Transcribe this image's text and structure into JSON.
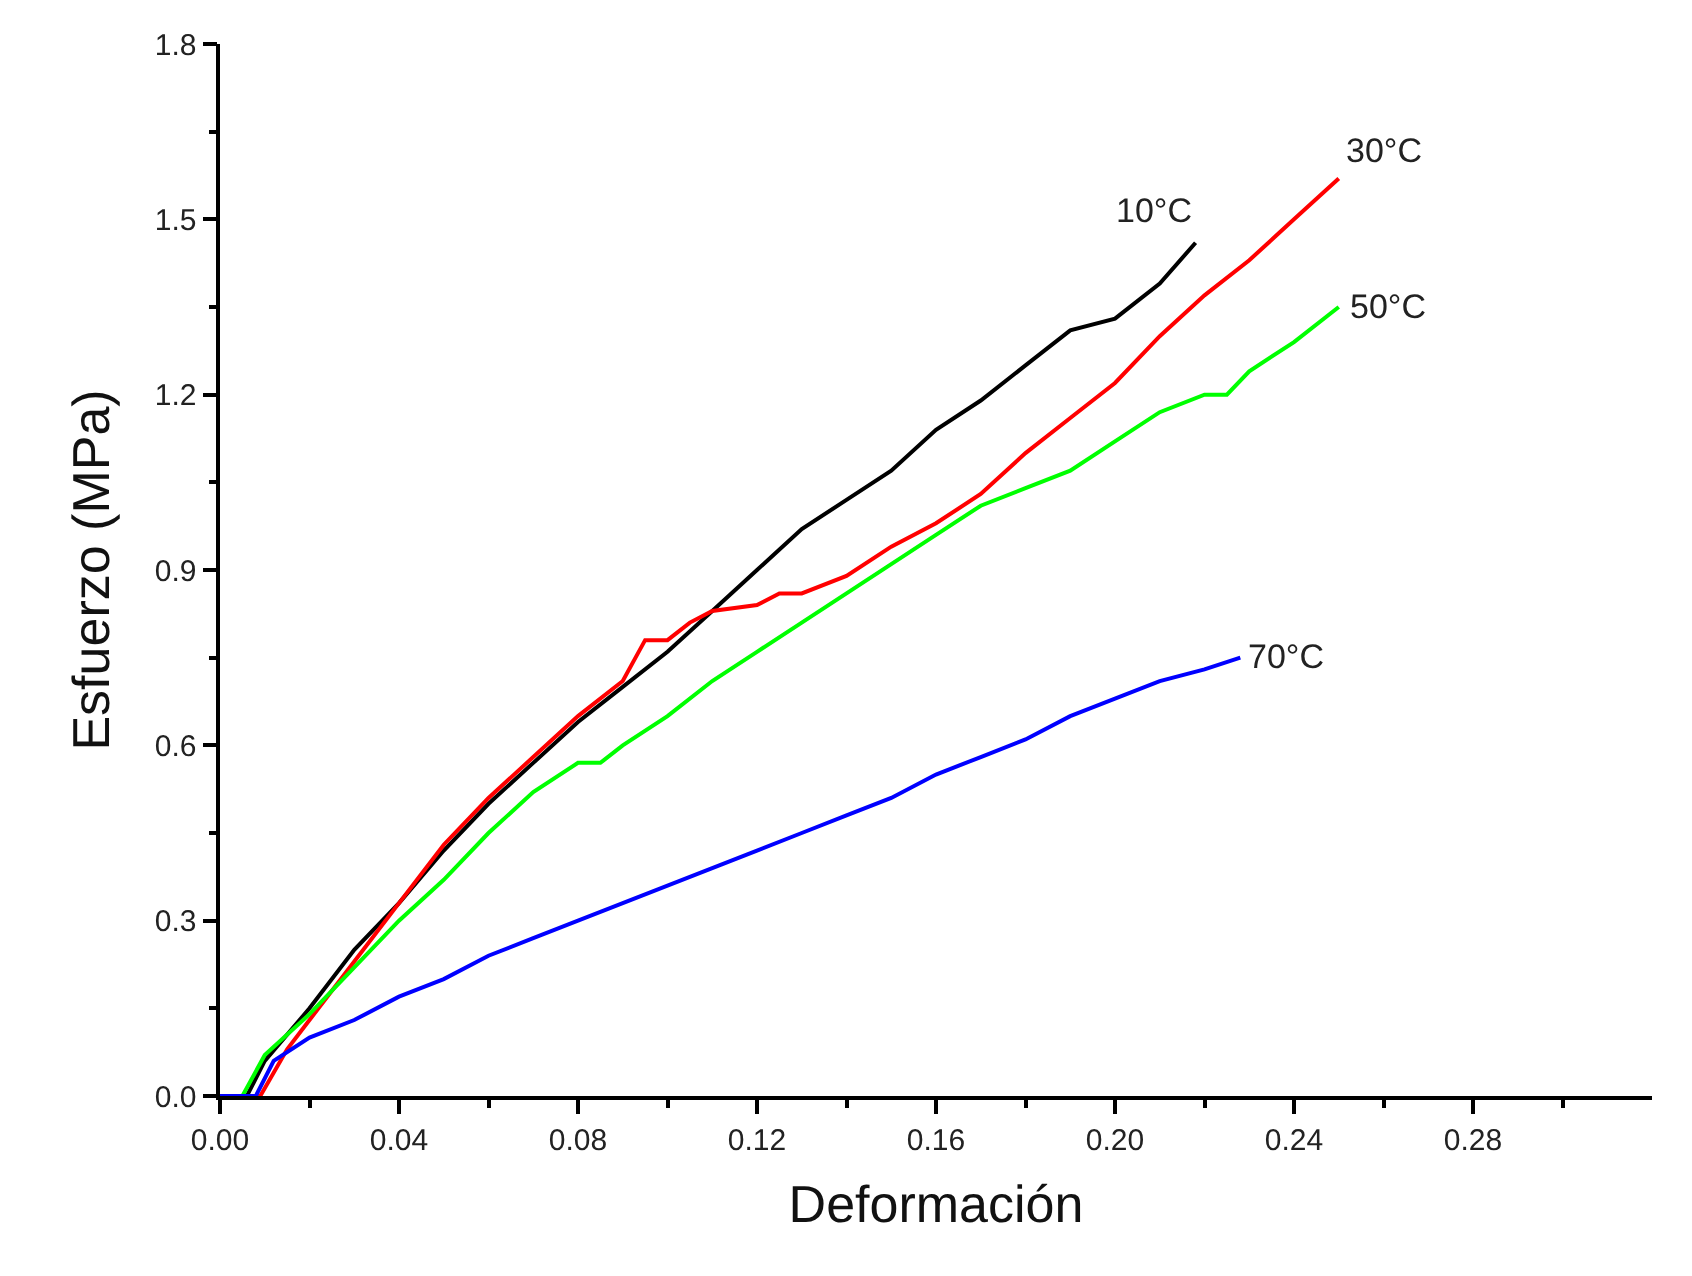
{
  "chart_data": {
    "type": "line",
    "xlabel": "Deformación",
    "ylabel": "Esfuerzo (MPa)",
    "xlim": [
      0,
      0.32
    ],
    "ylim": [
      0,
      1.8
    ],
    "xticks": [
      {
        "value": 0,
        "label": "0.00"
      },
      {
        "value": 0.02,
        "label": null
      },
      {
        "value": 0.04,
        "label": "0.04"
      },
      {
        "value": 0.06,
        "label": null
      },
      {
        "value": 0.08,
        "label": "0.08"
      },
      {
        "value": 0.1,
        "label": null
      },
      {
        "value": 0.12,
        "label": "0.12"
      },
      {
        "value": 0.14,
        "label": null
      },
      {
        "value": 0.16,
        "label": "0.16"
      },
      {
        "value": 0.18,
        "label": null
      },
      {
        "value": 0.2,
        "label": "0.20"
      },
      {
        "value": 0.22,
        "label": null
      },
      {
        "value": 0.24,
        "label": "0.24"
      },
      {
        "value": 0.26,
        "label": null
      },
      {
        "value": 0.28,
        "label": "0.28"
      },
      {
        "value": 0.3,
        "label": null
      }
    ],
    "yticks": [
      {
        "value": 0,
        "label": "0.0"
      },
      {
        "value": 0.15,
        "label": null
      },
      0.3,
      {
        "value": 0.45,
        "label": null
      },
      0.6,
      {
        "value": 0.75,
        "label": null
      },
      0.9,
      {
        "value": 1.05,
        "label": null
      },
      1.2,
      {
        "value": 1.35,
        "label": null
      },
      1.5,
      {
        "value": 1.65,
        "label": null
      },
      1.8
    ],
    "legend": false,
    "marker": "none",
    "line_style": "solid",
    "series": [
      {
        "name": "10°C",
        "color": "#000000",
        "x": [
          0,
          0.006,
          0.01,
          0.02,
          0.03,
          0.04,
          0.05,
          0.06,
          0.07,
          0.08,
          0.09,
          0.1,
          0.11,
          0.12,
          0.13,
          0.14,
          0.15,
          0.16,
          0.17,
          0.18,
          0.19,
          0.2,
          0.21,
          0.218
        ],
        "values": [
          0,
          0,
          0.06,
          0.15,
          0.25,
          0.33,
          0.42,
          0.5,
          0.57,
          0.64,
          0.7,
          0.76,
          0.83,
          0.9,
          0.97,
          1.02,
          1.07,
          1.14,
          1.19,
          1.25,
          1.31,
          1.33,
          1.39,
          1.46
        ]
      },
      {
        "name": "30°C",
        "color": "#ff0000",
        "x": [
          0,
          0.009,
          0.015,
          0.02,
          0.03,
          0.04,
          0.05,
          0.06,
          0.07,
          0.08,
          0.09,
          0.095,
          0.1,
          0.105,
          0.11,
          0.12,
          0.125,
          0.13,
          0.14,
          0.15,
          0.16,
          0.17,
          0.18,
          0.19,
          0.2,
          0.21,
          0.22,
          0.23,
          0.24,
          0.25
        ],
        "values": [
          0,
          0,
          0.08,
          0.13,
          0.23,
          0.33,
          0.43,
          0.51,
          0.58,
          0.65,
          0.71,
          0.78,
          0.78,
          0.81,
          0.83,
          0.84,
          0.86,
          0.86,
          0.89,
          0.94,
          0.98,
          1.03,
          1.1,
          1.16,
          1.22,
          1.3,
          1.37,
          1.43,
          1.5,
          1.57
        ]
      },
      {
        "name": "50°C",
        "color": "#00ff00",
        "x": [
          0,
          0.005,
          0.01,
          0.02,
          0.03,
          0.04,
          0.05,
          0.06,
          0.07,
          0.08,
          0.085,
          0.09,
          0.1,
          0.11,
          0.12,
          0.13,
          0.14,
          0.15,
          0.16,
          0.17,
          0.18,
          0.19,
          0.2,
          0.21,
          0.22,
          0.225,
          0.23,
          0.24,
          0.25
        ],
        "values": [
          0,
          0,
          0.07,
          0.14,
          0.22,
          0.3,
          0.37,
          0.45,
          0.52,
          0.57,
          0.57,
          0.6,
          0.65,
          0.71,
          0.76,
          0.81,
          0.86,
          0.91,
          0.96,
          1.01,
          1.04,
          1.07,
          1.12,
          1.17,
          1.2,
          1.2,
          1.24,
          1.29,
          1.35
        ]
      },
      {
        "name": "70°C",
        "color": "#0000ff",
        "x": [
          0,
          0.008,
          0.012,
          0.02,
          0.03,
          0.04,
          0.05,
          0.06,
          0.07,
          0.08,
          0.09,
          0.1,
          0.11,
          0.12,
          0.13,
          0.14,
          0.15,
          0.16,
          0.17,
          0.18,
          0.19,
          0.2,
          0.21,
          0.22,
          0.228
        ],
        "values": [
          0,
          0,
          0.06,
          0.1,
          0.13,
          0.17,
          0.2,
          0.24,
          0.27,
          0.3,
          0.33,
          0.36,
          0.39,
          0.42,
          0.45,
          0.48,
          0.51,
          0.55,
          0.58,
          0.61,
          0.65,
          0.68,
          0.71,
          0.73,
          0.75
        ]
      }
    ]
  }
}
